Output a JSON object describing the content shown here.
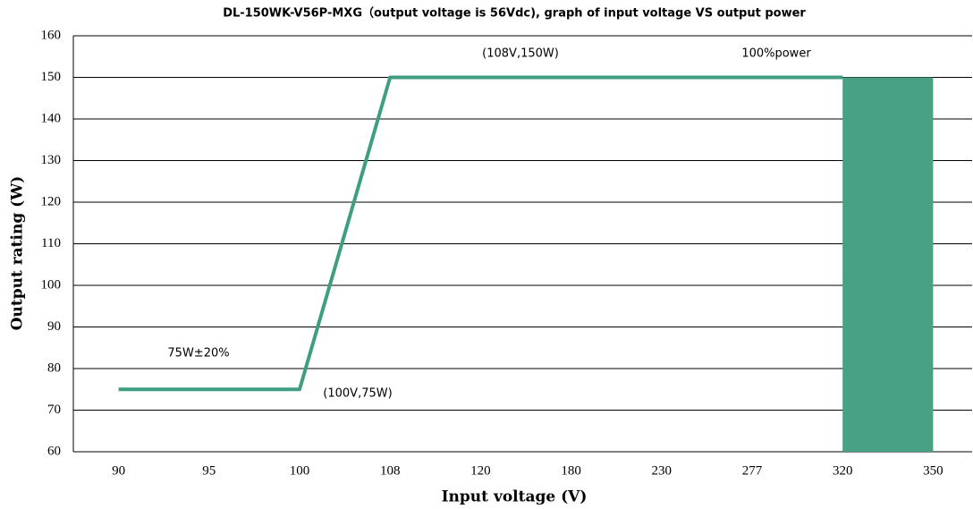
{
  "chart_data": {
    "type": "line",
    "title": "DL-150WK-V56P-MXG（output voltage is 56Vdc), graph of input voltage VS output power",
    "x_label": "Input voltage (V)",
    "y_label": "Output rating (W)",
    "categories": [
      "90",
      "95",
      "100",
      "108",
      "120",
      "180",
      "230",
      "277",
      "320",
      "350"
    ],
    "series": [
      {
        "type": "line",
        "color": "#3f9e82",
        "values": [
          75,
          75,
          75,
          150,
          150,
          150,
          150,
          150,
          150,
          null
        ]
      },
      {
        "type": "area",
        "color": "#48a085",
        "values": [
          null,
          null,
          null,
          null,
          null,
          null,
          null,
          null,
          150,
          150
        ]
      }
    ],
    "annotations": [
      "(108V,150W)",
      "100%power",
      "75W±20%",
      "(100V,75W)"
    ],
    "ylim": [
      60,
      160
    ],
    "yticks": [
      60,
      70,
      80,
      90,
      100,
      110,
      120,
      130,
      140,
      150,
      160
    ],
    "grid": true
  }
}
